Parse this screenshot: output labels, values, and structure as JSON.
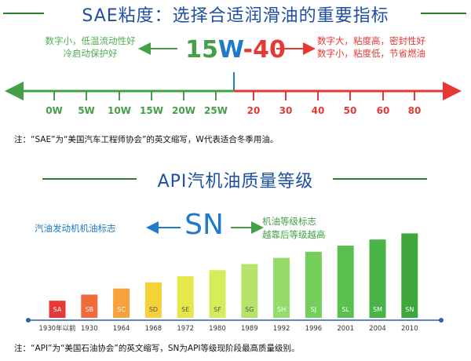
{
  "sae": {
    "title": "SAE粘度：选择合适润滑油的重要指标",
    "left_text": [
      "数字小，低温流动性好",
      "冷启动保护好"
    ],
    "right_text": [
      "数字大，粘度高，密封性好",
      "数字小，粘度低，节省燃油"
    ],
    "grade_15": "15",
    "grade_w": "W",
    "grade_40": "-40",
    "winter_ticks": [
      "0W",
      "5W",
      "10W",
      "15W",
      "20W",
      "25W"
    ],
    "summer_ticks": [
      "20",
      "30",
      "40",
      "50",
      "60",
      "80"
    ],
    "note": "注：“SAE”为“美国汽车工程师协会”的英文缩写，W代表适合冬季用油。",
    "colors": {
      "green": "#43a047",
      "red": "#e53935",
      "blue": "#1f7ac9"
    }
  },
  "api": {
    "title": "API汽机油质量等级",
    "left_label": "汽油发动机机油标志",
    "grade": "SN",
    "right_text": [
      "机油等级标志",
      "越靠后等级越高"
    ],
    "note": "注：“API”为“美国石油协会”的英文缩写，SN为API等级现阶段最高质量级别。"
  },
  "chart_data": {
    "type": "bar",
    "categories": [
      "SA",
      "SB",
      "SC",
      "SD",
      "SE",
      "SF",
      "SG",
      "SH",
      "SJ",
      "SL",
      "SM",
      "SN"
    ],
    "years": [
      "1930年以前",
      "1930",
      "1964",
      "1968",
      "1972",
      "1980",
      "1989",
      "1992",
      "1996",
      "2001",
      "2004",
      "2010"
    ],
    "values": [
      1,
      2,
      3,
      4,
      5,
      6,
      7,
      8,
      9,
      10,
      11,
      12
    ],
    "colors": [
      "#e53935",
      "#f06a3a",
      "#f7a23a",
      "#f5d23a",
      "#e6e84a",
      "#d7ec5a",
      "#b6e36a",
      "#95db6a",
      "#74cf5a",
      "#5ac04f",
      "#49b347",
      "#3ea63d"
    ]
  }
}
